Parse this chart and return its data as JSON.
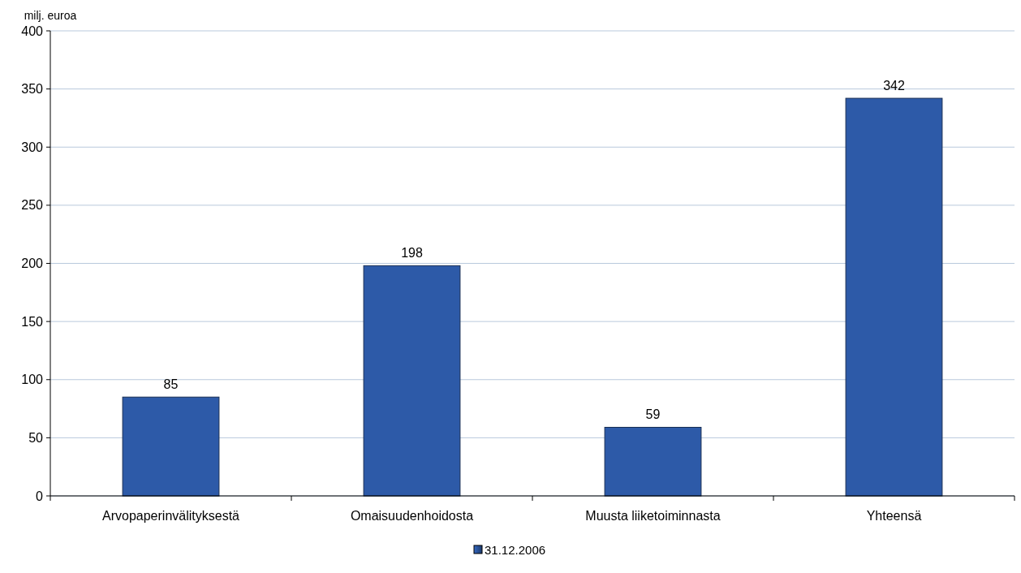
{
  "chart_data": {
    "type": "bar",
    "ylabel": "milj. euroa",
    "categories": [
      "Arvopaperinvälityksestä",
      "Omaisuudenhoidosta",
      "Muusta liiketoiminnasta",
      "Yhteensä"
    ],
    "series": [
      {
        "name": "31.12.2006",
        "color": "#2d5aa8",
        "values": [
          85,
          198,
          59,
          342
        ]
      }
    ],
    "ylim": [
      0,
      400
    ],
    "yticks": [
      0,
      50,
      100,
      150,
      200,
      250,
      300,
      350,
      400
    ],
    "grid": "y",
    "legend": "bottom",
    "data_labels": true
  }
}
